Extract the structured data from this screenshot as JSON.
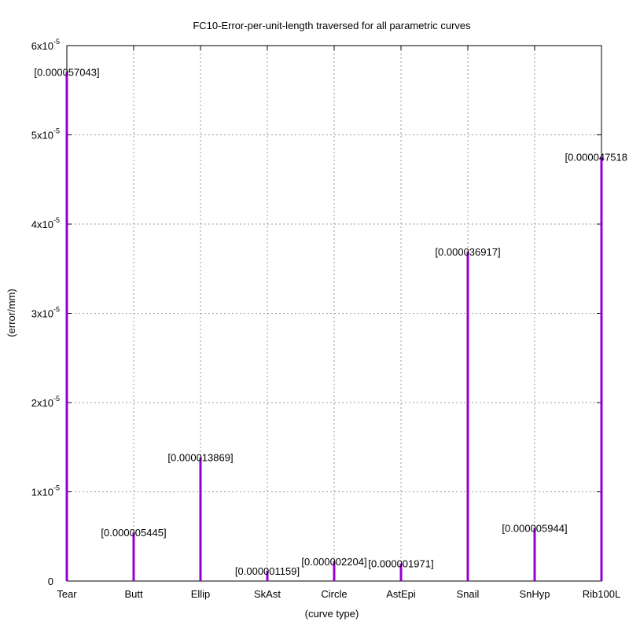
{
  "chart_data": {
    "type": "bar",
    "title": "FC10-Error-per-unit-length traversed for all parametric curves",
    "xlabel": "(curve type)",
    "ylabel": "(error/mm)",
    "categories": [
      "Tear",
      "Butt",
      "Ellip",
      "SkAst",
      "Circle",
      "AstEpi",
      "Snail",
      "SnHyp",
      "Rib100L"
    ],
    "values": [
      5.7043e-05,
      5.445e-06,
      1.3869e-05,
      1.159e-06,
      2.204e-06,
      1.971e-06,
      3.6917e-05,
      5.944e-06,
      4.7518e-05
    ],
    "data_labels": [
      "[0.000057043]",
      "[0.000005445]",
      "[0.000013869]",
      "[0.000001159]",
      "[0.000002204]",
      "[0.000001971]",
      "[0.000036917]",
      "[0.000005944]",
      "[0.000047518"
    ],
    "ylim": [
      0,
      6e-05
    ],
    "y_ticks": [
      {
        "value": 0,
        "mantissa": "0",
        "exponent": ""
      },
      {
        "value": 1e-05,
        "mantissa": "1x10",
        "exponent": "-5"
      },
      {
        "value": 2e-05,
        "mantissa": "2x10",
        "exponent": "-5"
      },
      {
        "value": 3e-05,
        "mantissa": "3x10",
        "exponent": "-5"
      },
      {
        "value": 4e-05,
        "mantissa": "4x10",
        "exponent": "-5"
      },
      {
        "value": 5e-05,
        "mantissa": "5x10",
        "exponent": "-5"
      },
      {
        "value": 6e-05,
        "mantissa": "6x10",
        "exponent": "-5"
      }
    ],
    "grid": true,
    "bar_color": "#9400d3"
  }
}
